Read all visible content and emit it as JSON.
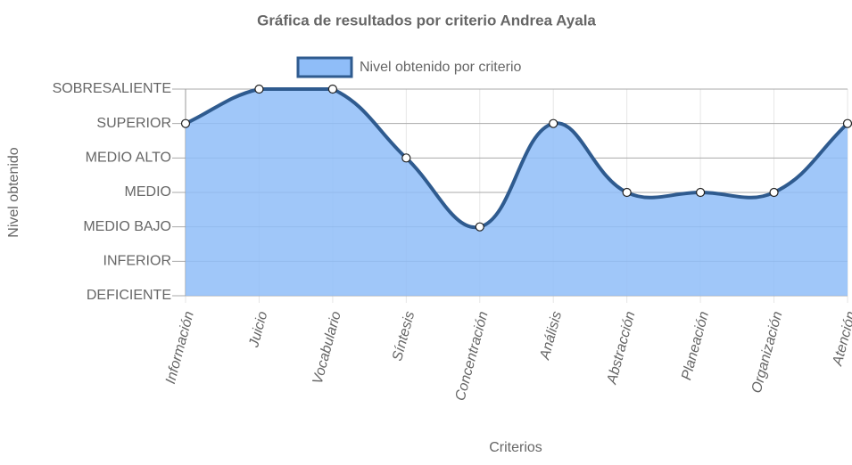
{
  "chart_data": {
    "type": "area",
    "title": "Gráfica de resultados por criterio Andrea Ayala",
    "x_label": "Criterios",
    "y_label": "Nivel obtenido",
    "categories": [
      "Información",
      "Juicio",
      "Vocabulario",
      "Síntesis",
      "Concentración",
      "Análisis",
      "Abstracción",
      "Planeación",
      "Organización",
      "Atención"
    ],
    "series": [
      {
        "name": "Nivel obtenido por criterio",
        "color": "#2f5b8f",
        "fill": "#8fbdf8",
        "values": [
          5,
          6,
          6,
          4,
          2,
          5,
          3,
          3,
          3,
          5
        ]
      }
    ],
    "ylim": [
      0,
      6
    ],
    "yticks": [
      {
        "value": 0,
        "label": "DEFICIENTE"
      },
      {
        "value": 1,
        "label": "INFERIOR"
      },
      {
        "value": 2,
        "label": "MEDIO BAJO"
      },
      {
        "value": 3,
        "label": "MEDIO"
      },
      {
        "value": 4,
        "label": "MEDIO ALTO"
      },
      {
        "value": 5,
        "label": "SUPERIOR"
      },
      {
        "value": 6,
        "label": "SOBRESALIENTE"
      }
    ],
    "grid": true,
    "legend": "top"
  }
}
